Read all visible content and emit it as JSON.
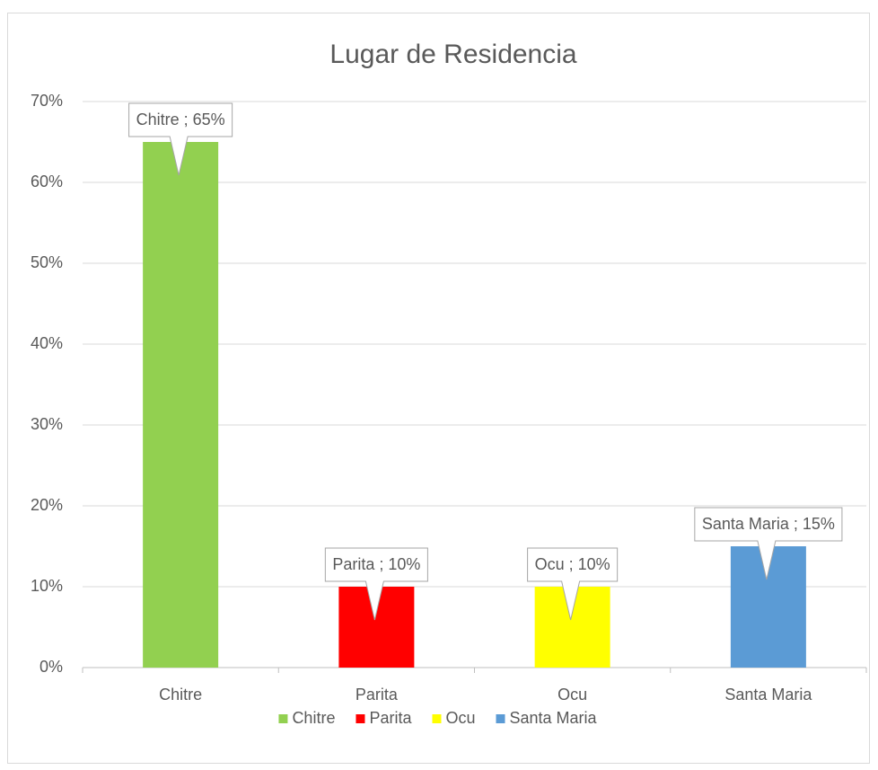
{
  "chart_data": {
    "type": "bar",
    "title": "Lugar de Residencia",
    "categories": [
      "Chitre",
      "Parita",
      "Ocu",
      "Santa Maria"
    ],
    "values": [
      65,
      10,
      10,
      15
    ],
    "value_labels": [
      "Chitre ; 65%",
      "Parita ; 10%",
      "Ocu ; 10%",
      "Santa Maria ; 15%"
    ],
    "colors": [
      "#92d050",
      "#ff0000",
      "#ffff00",
      "#5b9bd5"
    ],
    "ylim": [
      0,
      70
    ],
    "yticks": [
      {
        "value": 0,
        "label": "0%"
      },
      {
        "value": 10,
        "label": "10%"
      },
      {
        "value": 20,
        "label": "20%"
      },
      {
        "value": 30,
        "label": "30%"
      },
      {
        "value": 40,
        "label": "40%"
      },
      {
        "value": 50,
        "label": "50%"
      },
      {
        "value": 60,
        "label": "60%"
      },
      {
        "value": 70,
        "label": "70%"
      }
    ],
    "grid": true,
    "legend": "bottom"
  }
}
